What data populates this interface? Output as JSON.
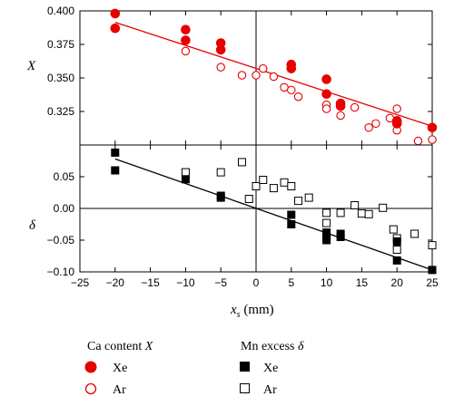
{
  "chart_data": [
    {
      "type": "scatter",
      "panel": "top",
      "ylabel": "X",
      "xlim": [
        -25,
        25
      ],
      "ylim": [
        0.3,
        0.4
      ],
      "y_ticks": [
        "0.325",
        "0.350",
        "0.375",
        "0.400"
      ],
      "y_tick_values": [
        0.325,
        0.35,
        0.375,
        0.4
      ],
      "series": [
        {
          "name": "Xe",
          "marker": "filled-circle",
          "color": "#e60000",
          "x": [
            -20,
            -20,
            -10,
            -10,
            -5,
            -5,
            5,
            5,
            10,
            10,
            12,
            12,
            20,
            20,
            25
          ],
          "y": [
            0.398,
            0.387,
            0.386,
            0.378,
            0.376,
            0.371,
            0.36,
            0.357,
            0.349,
            0.338,
            0.331,
            0.329,
            0.318,
            0.316,
            0.313
          ]
        },
        {
          "name": "Ar",
          "marker": "open-circle",
          "color": "#e60000",
          "x": [
            -10,
            -5,
            -2,
            0,
            1,
            2.5,
            4,
            5,
            6,
            10,
            10,
            12,
            14,
            16,
            17,
            19,
            20,
            20,
            23,
            25
          ],
          "y": [
            0.37,
            0.358,
            0.352,
            0.352,
            0.357,
            0.351,
            0.343,
            0.341,
            0.336,
            0.33,
            0.327,
            0.322,
            0.328,
            0.313,
            0.316,
            0.32,
            0.327,
            0.311,
            0.303,
            0.304
          ]
        }
      ],
      "fit_line": {
        "color": "#e60000",
        "x": [
          -20,
          25
        ],
        "y": [
          0.3915,
          0.314
        ]
      }
    },
    {
      "type": "scatter",
      "panel": "bottom",
      "ylabel": "δ",
      "xlabel": "x",
      "xlabel_sub": "s",
      "xlabel_unit": " (mm)",
      "xlim": [
        -25,
        25
      ],
      "ylim": [
        -0.1,
        0.1
      ],
      "x_ticks": [
        "−25",
        "−20",
        "−15",
        "−10",
        "−5",
        "0",
        "5",
        "10",
        "15",
        "20",
        "25"
      ],
      "x_tick_values": [
        -25,
        -20,
        -15,
        -10,
        -5,
        0,
        5,
        10,
        15,
        20,
        25
      ],
      "y_ticks": [
        "−0.10",
        "−0.05",
        "0.00",
        "0.05"
      ],
      "y_tick_values": [
        -0.1,
        -0.05,
        0.0,
        0.05
      ],
      "series": [
        {
          "name": "Xe",
          "marker": "filled-square",
          "color": "#000000",
          "x": [
            -20,
            -20,
            -10,
            -5,
            -5,
            5,
            5,
            10,
            10,
            10,
            12,
            12,
            20,
            20,
            25
          ],
          "y": [
            0.088,
            0.06,
            0.046,
            0.02,
            0.017,
            -0.01,
            -0.025,
            -0.038,
            -0.045,
            -0.05,
            -0.04,
            -0.045,
            -0.052,
            -0.082,
            -0.097
          ]
        },
        {
          "name": "Ar",
          "marker": "open-square",
          "color": "#000000",
          "x": [
            -10,
            -5,
            -2,
            -1,
            0,
            1,
            2.5,
            4,
            5,
            6,
            7.5,
            10,
            10,
            12,
            14,
            15,
            16,
            18,
            19.5,
            20,
            20,
            22.5,
            25
          ],
          "y": [
            0.057,
            0.057,
            0.073,
            0.015,
            0.035,
            0.045,
            0.032,
            0.041,
            0.035,
            0.012,
            0.017,
            -0.007,
            -0.023,
            -0.007,
            0.005,
            -0.008,
            -0.009,
            0.001,
            -0.033,
            -0.047,
            -0.065,
            -0.04,
            -0.058
          ]
        }
      ],
      "fit_line": {
        "color": "#000000",
        "x": [
          -20,
          25
        ],
        "y": [
          0.078,
          -0.097
        ]
      }
    }
  ],
  "legend": {
    "ca": {
      "title_prefix": "Ca content ",
      "title_var": "X",
      "items": [
        "Xe",
        "Ar"
      ]
    },
    "mn": {
      "title_prefix": "Mn excess ",
      "title_var": "δ",
      "items": [
        "Xe",
        "Ar"
      ]
    }
  }
}
